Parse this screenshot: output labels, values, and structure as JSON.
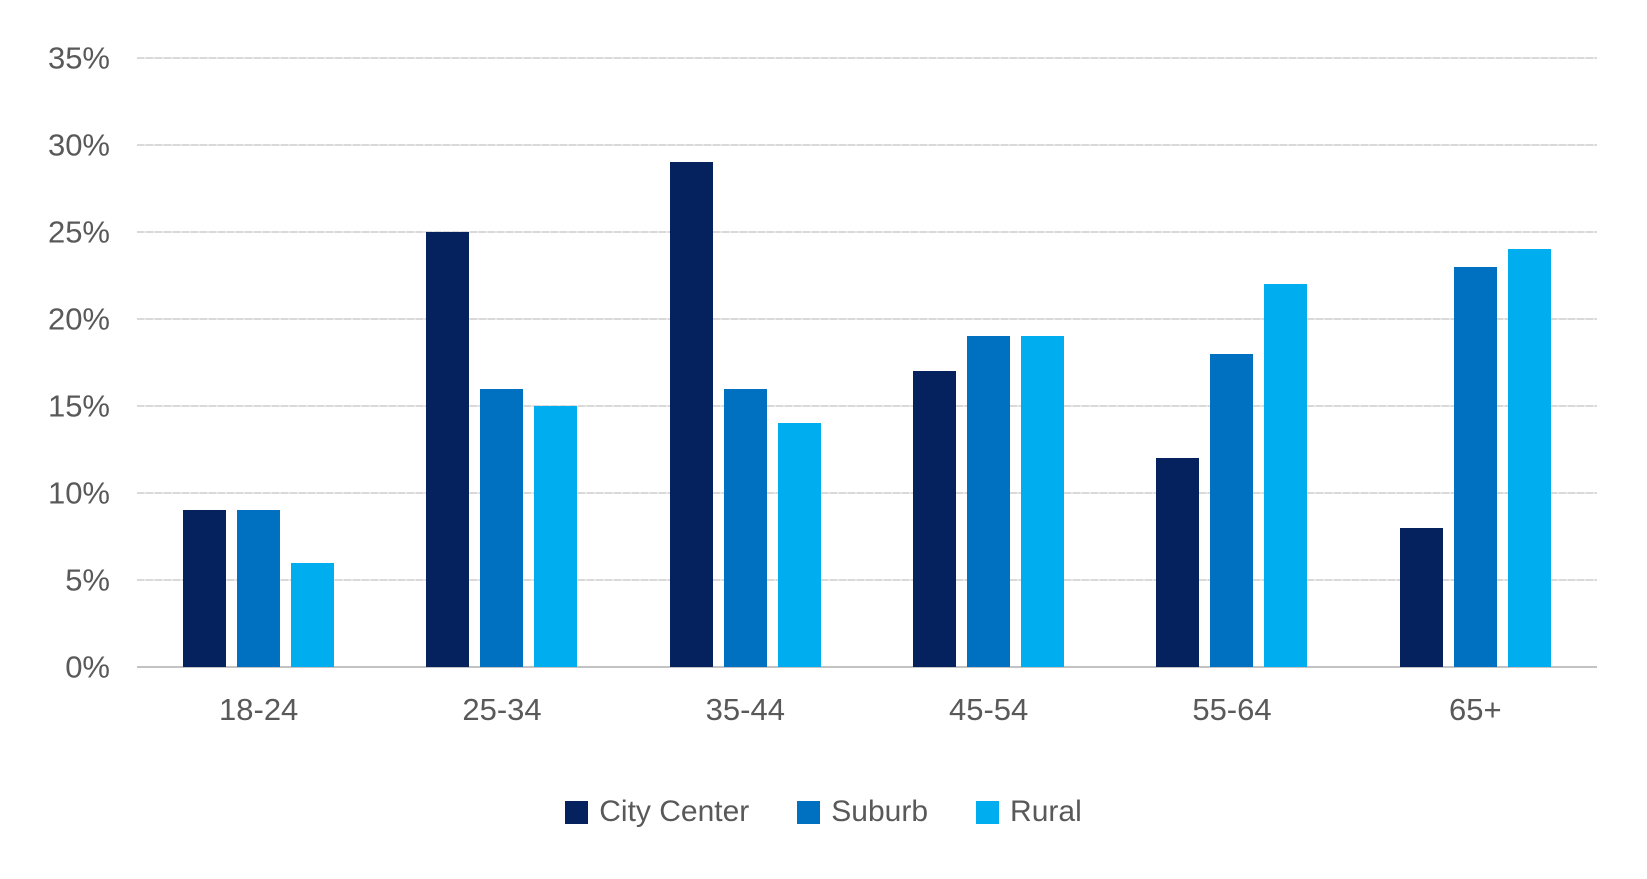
{
  "chart_data": {
    "type": "bar",
    "categories": [
      "18-24",
      "25-34",
      "35-44",
      "45-54",
      "55-64",
      "65+"
    ],
    "series": [
      {
        "name": "City Center",
        "color": "#05215E",
        "values": [
          9,
          25,
          29,
          17,
          12,
          8
        ]
      },
      {
        "name": "Suburb",
        "color": "#0070C0",
        "values": [
          9,
          16,
          16,
          19,
          18,
          23
        ]
      },
      {
        "name": "Rural",
        "color": "#00AEEF",
        "values": [
          6,
          15,
          14,
          19,
          22,
          24
        ]
      }
    ],
    "yticks": [
      {
        "value": 35,
        "label": "35%"
      },
      {
        "value": 30,
        "label": "30%"
      },
      {
        "value": 25,
        "label": "25%"
      },
      {
        "value": 20,
        "label": "20%"
      },
      {
        "value": 15,
        "label": "15%"
      },
      {
        "value": 10,
        "label": "10%"
      },
      {
        "value": 5,
        "label": "5%"
      },
      {
        "value": 0,
        "label": "0%"
      }
    ],
    "ylim": [
      0,
      35
    ],
    "xlabel": "",
    "ylabel": "",
    "grid": true,
    "legend_position": "bottom"
  },
  "colors": {
    "gridline": "#D9D9D9",
    "axis_baseline": "#C3C3C3",
    "label_text": "#595959",
    "background": "#FFFFFF"
  }
}
